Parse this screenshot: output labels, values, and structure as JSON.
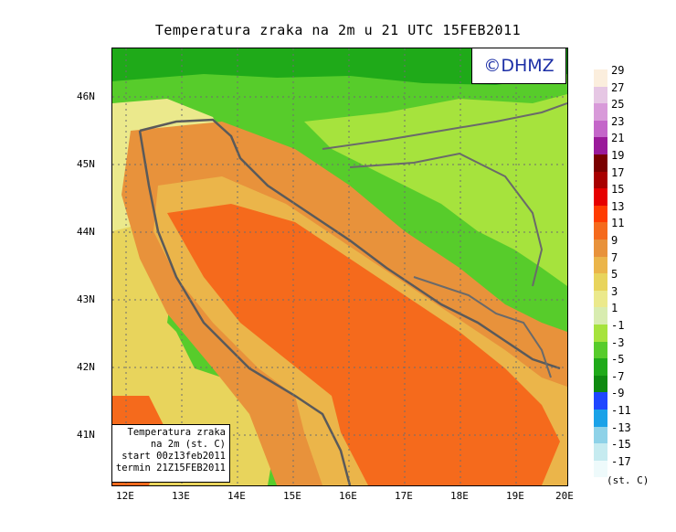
{
  "title": "Temperatura zraka na 2m u 21 UTC 15FEB2011",
  "logo": "©DHMZ",
  "map": {
    "lat_labels": [
      "46N",
      "45N",
      "44N",
      "43N",
      "42N",
      "41N"
    ],
    "lon_labels": [
      "12E",
      "13E",
      "14E",
      "15E",
      "16E",
      "17E",
      "18E",
      "19E",
      "20E"
    ]
  },
  "info_box": {
    "line1": "Temperatura zraka",
    "line2": "na 2m (st. C)",
    "line3": "start 00z13feb2011",
    "line4": "termin 21Z15FEB2011"
  },
  "colorbar": {
    "unit": "(st. C)",
    "labels": [
      "29",
      "27",
      "25",
      "23",
      "21",
      "19",
      "17",
      "15",
      "13",
      "11",
      "9",
      "7",
      "5",
      "3",
      "1",
      "-1",
      "-3",
      "-5",
      "-7",
      "-9",
      "-11",
      "-13",
      "-15",
      "-17"
    ],
    "colors": [
      "#fbeedd",
      "#e6c7e4",
      "#d89ad9",
      "#c466c9",
      "#9a1a9a",
      "#7a0000",
      "#a80000",
      "#e60000",
      "#ff3b00",
      "#f56a1c",
      "#e8923b",
      "#ebb54a",
      "#e8d45c",
      "#ebe98c",
      "#d8ecb0",
      "#a6e33d",
      "#57cc2b",
      "#1faa19",
      "#0e8a10",
      "#1f47ff",
      "#1aa2e8",
      "#8ed2e8",
      "#c6ebf0",
      "#eefafb"
    ]
  }
}
